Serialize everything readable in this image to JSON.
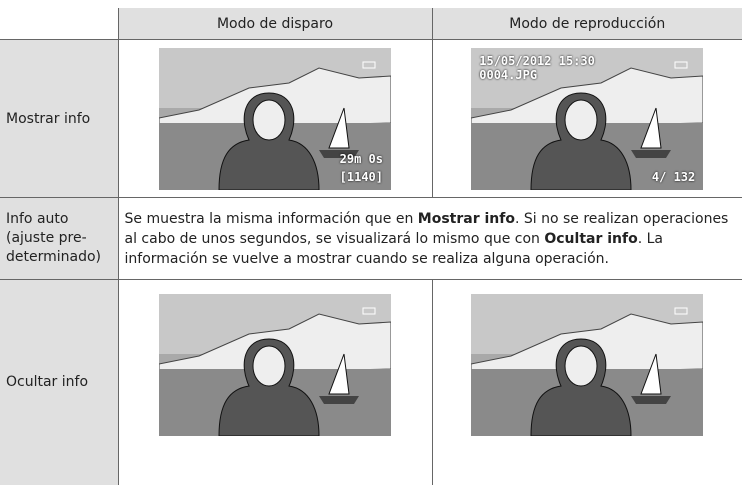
{
  "header": {
    "columns": [
      "Modo de disparo",
      "Modo de reproducción"
    ]
  },
  "rows": [
    {
      "label": "Mostrar info",
      "shooting_overlay": [
        "29m 0s",
        "[1140]"
      ],
      "playback_overlay": [
        "15/05/2012  15:30",
        "0004.JPG",
        "4/ 132"
      ]
    },
    {
      "label": "Info auto (ajuste pre-determinado)",
      "text": [
        "Se muestra la misma información que en ",
        "Mostrar info",
        ". Si no se realizan operaciones al cabo de unos segundos, se visualizará lo mismo que con ",
        "Ocultar info",
        ". La información se vuelve a mostrar cuando se realiza alguna operación."
      ]
    },
    {
      "label": "Ocultar info"
    }
  ]
}
